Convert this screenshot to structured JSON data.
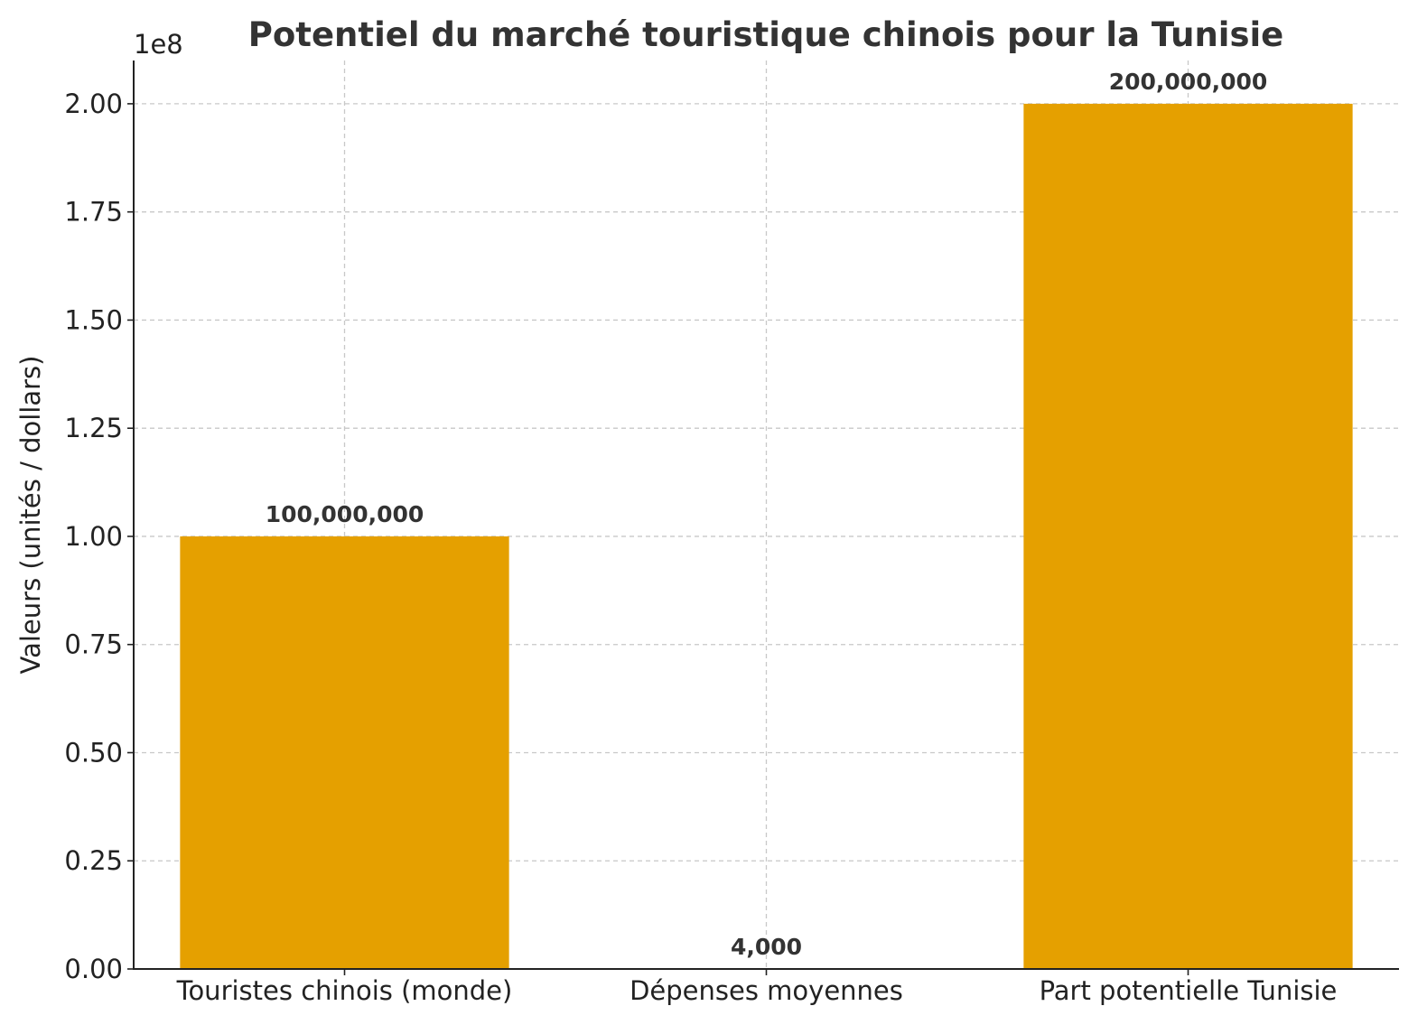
{
  "chart_data": {
    "type": "bar",
    "title": "Potentiel du marché touristique chinois pour la Tunisie",
    "xlabel": "",
    "ylabel": "Valeurs (unités / dollars)",
    "y_offset_label": "1e8",
    "categories": [
      "Touristes chinois (monde)",
      "Dépenses moyennes",
      "Part potentielle Tunisie"
    ],
    "values": [
      100000000,
      4000,
      200000000
    ],
    "data_labels": [
      "100,000,000",
      "4,000",
      "200,000,000"
    ],
    "ylim": [
      0,
      210000000
    ],
    "yticks": [
      0,
      25000000,
      50000000,
      75000000,
      100000000,
      125000000,
      150000000,
      175000000,
      200000000
    ],
    "ytick_labels": [
      "0.00",
      "0.25",
      "0.50",
      "0.75",
      "1.00",
      "1.25",
      "1.50",
      "1.75",
      "2.00"
    ],
    "grid": true,
    "bar_color": "#E5A000"
  }
}
